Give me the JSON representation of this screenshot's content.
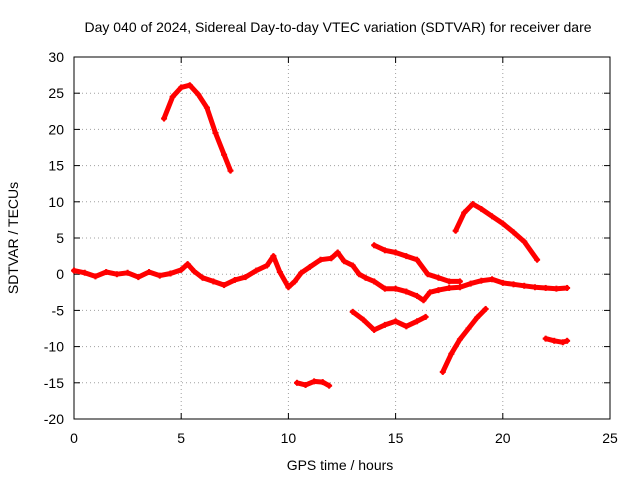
{
  "chart_data": {
    "type": "line",
    "title": "Day 040 of 2024, Sidereal Day-to-day VTEC variation (SDTVAR) for receiver dare",
    "xlabel": "GPS time / hours",
    "ylabel": "SDTVAR / TECUs",
    "xlim": [
      0,
      25
    ],
    "ylim": [
      -20,
      30
    ],
    "xticks": [
      0,
      5,
      10,
      15,
      20,
      25
    ],
    "yticks": [
      -20,
      -15,
      -10,
      -5,
      0,
      5,
      10,
      15,
      20,
      25,
      30
    ],
    "grid": true,
    "color": "#ff0000",
    "series": [
      {
        "name": "arc-baseline",
        "x": [
          0,
          0.5,
          1,
          1.5,
          2,
          2.5,
          3,
          3.5,
          4,
          4.5,
          5,
          5.3,
          5.6,
          6,
          6.5,
          7,
          7.5,
          8,
          8.5,
          9,
          9.3,
          9.6,
          10,
          10.3,
          10.6,
          11,
          11.5,
          12,
          12.3,
          12.6,
          13,
          13.3,
          13.6,
          14,
          14.5,
          15,
          15.5,
          16,
          16.3,
          16.6,
          17,
          17.5,
          18,
          18.5,
          19,
          19.5,
          20,
          20.5,
          21,
          21.5,
          22,
          22.5,
          23
        ],
        "y": [
          0.5,
          0.2,
          -0.3,
          0.3,
          0,
          0.2,
          -0.4,
          0.3,
          -0.2,
          0.1,
          0.6,
          1.4,
          0.4,
          -0.5,
          -1,
          -1.5,
          -0.8,
          -0.4,
          0.5,
          1.2,
          2.5,
          0.3,
          -1.8,
          -1,
          0.2,
          1,
          2,
          2.2,
          3,
          1.8,
          1.2,
          0,
          -0.5,
          -1,
          -2,
          -2,
          -2.4,
          -3,
          -3.6,
          -2.5,
          -2.2,
          -1.9,
          -1.8,
          -1.3,
          -0.9,
          -0.7,
          -1.2,
          -1.4,
          -1.6,
          -1.8,
          -1.9,
          -2,
          -1.9
        ]
      },
      {
        "name": "arc-morning-peak",
        "x": [
          4.2,
          4.6,
          5,
          5.4,
          5.8,
          6.2,
          6.6,
          7,
          7.3
        ],
        "y": [
          21.5,
          24.5,
          25.8,
          26.1,
          24.8,
          23,
          19.5,
          16.5,
          14.3
        ]
      },
      {
        "name": "arc-afternoon-peak",
        "x": [
          17.8,
          18.2,
          18.6,
          19,
          19.5,
          20,
          20.5,
          21,
          21.6
        ],
        "y": [
          6,
          8.5,
          9.7,
          9,
          8,
          7,
          5.8,
          4.5,
          2
        ]
      },
      {
        "name": "arc-14h-upper",
        "x": [
          14,
          14.5,
          15,
          15.5,
          16,
          16.5,
          17,
          17.5,
          18
        ],
        "y": [
          4,
          3.3,
          3,
          2.5,
          2,
          0,
          -0.5,
          -1,
          -1
        ]
      },
      {
        "name": "arc-13h-lower",
        "x": [
          13,
          13.5,
          14,
          14.5,
          15,
          15.5,
          16,
          16.4
        ],
        "y": [
          -5.2,
          -6.3,
          -7.7,
          -7,
          -6.5,
          -7.2,
          -6.5,
          -5.9
        ]
      },
      {
        "name": "arc-rising-17h",
        "x": [
          17.2,
          17.6,
          18,
          18.4,
          18.8,
          19.2
        ],
        "y": [
          -13.5,
          -11,
          -9,
          -7.5,
          -6,
          -4.8
        ]
      },
      {
        "name": "arc-11h-low",
        "x": [
          10.4,
          10.8,
          11.2,
          11.6,
          11.9
        ],
        "y": [
          -15,
          -15.3,
          -14.8,
          -14.9,
          -15.4
        ]
      },
      {
        "name": "arc-22h-low",
        "x": [
          22,
          22.4,
          22.8,
          23
        ],
        "y": [
          -8.9,
          -9.2,
          -9.4,
          -9.2
        ]
      }
    ]
  }
}
